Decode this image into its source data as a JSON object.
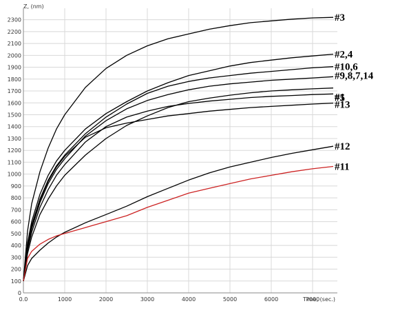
{
  "chart_data": {
    "type": "line",
    "title": "",
    "xlabel": "Time, (sec.)",
    "ylabel": "Z, (nm)",
    "xlim": [
      0,
      7600
    ],
    "ylim": [
      0,
      2350
    ],
    "grid": true,
    "x_ticks": [
      "0.0",
      "1000",
      "2000",
      "3000",
      "4000",
      "5000",
      "6000",
      "7000"
    ],
    "y_ticks": [
      "0",
      "100",
      "200",
      "300",
      "400",
      "500",
      "600",
      "700",
      "800",
      "900",
      "1000",
      "1100",
      "1200",
      "1300",
      "1400",
      "1500",
      "1600",
      "1700",
      "1800",
      "1900",
      "2000",
      "2100",
      "2200",
      "2300"
    ],
    "colors": {
      "default": "#000000",
      "highlight": "#cc2222",
      "grid": "#d8d8d8"
    },
    "series": [
      {
        "name": "#3",
        "color": "#000000",
        "x": [
          0,
          100,
          200,
          400,
          600,
          800,
          1000,
          1500,
          2000,
          2500,
          3000,
          3500,
          4000,
          4500,
          5000,
          5500,
          6000,
          6500,
          7000,
          7500
        ],
        "y": [
          100,
          520,
          750,
          1020,
          1220,
          1380,
          1500,
          1730,
          1890,
          2000,
          2080,
          2140,
          2180,
          2220,
          2250,
          2275,
          2290,
          2305,
          2315,
          2320
        ]
      },
      {
        "name": "#2,4",
        "color": "#000000",
        "x": [
          0,
          100,
          200,
          400,
          600,
          800,
          1000,
          1500,
          2000,
          2500,
          3000,
          3500,
          4000,
          4500,
          5000,
          5500,
          6000,
          6500,
          7000,
          7500
        ],
        "y": [
          100,
          420,
          600,
          830,
          990,
          1110,
          1200,
          1380,
          1510,
          1610,
          1700,
          1770,
          1830,
          1870,
          1910,
          1940,
          1960,
          1980,
          1995,
          2010
        ]
      },
      {
        "name": "#10,6",
        "color": "#000000",
        "x": [
          0,
          100,
          200,
          400,
          600,
          800,
          1000,
          1500,
          2000,
          2500,
          3000,
          3500,
          4000,
          4500,
          5000,
          5500,
          6000,
          6500,
          7000,
          7500
        ],
        "y": [
          100,
          400,
          570,
          790,
          950,
          1070,
          1160,
          1340,
          1480,
          1590,
          1680,
          1740,
          1780,
          1810,
          1830,
          1850,
          1865,
          1880,
          1895,
          1905
        ]
      },
      {
        "name": "#9,8,7,14",
        "color": "#000000",
        "x": [
          0,
          100,
          200,
          400,
          600,
          800,
          1000,
          1500,
          2000,
          2500,
          3000,
          3500,
          4000,
          4500,
          5000,
          5500,
          6000,
          6500,
          7000,
          7500
        ],
        "y": [
          100,
          380,
          540,
          760,
          920,
          1040,
          1130,
          1320,
          1450,
          1550,
          1620,
          1670,
          1710,
          1740,
          1760,
          1775,
          1790,
          1800,
          1810,
          1820
        ]
      },
      {
        "name": "#5",
        "color": "#000000",
        "x": [
          0,
          100,
          200,
          400,
          600,
          800,
          1000,
          1500,
          2000,
          2500,
          3000,
          3500,
          4000,
          4500,
          5000,
          5500,
          6000,
          6500,
          7000,
          7500
        ],
        "y": [
          100,
          330,
          470,
          660,
          790,
          900,
          990,
          1160,
          1300,
          1410,
          1490,
          1560,
          1610,
          1640,
          1665,
          1685,
          1700,
          1710,
          1718,
          1725
        ]
      },
      {
        "name": "#1",
        "color": "#000000",
        "x": [
          0,
          100,
          200,
          400,
          600,
          800,
          1000,
          1500,
          2000,
          2500,
          3000,
          3500,
          4000,
          4500,
          5000,
          5500,
          6000,
          6500,
          7000,
          7500
        ],
        "y": [
          100,
          360,
          510,
          720,
          870,
          990,
          1080,
          1270,
          1400,
          1480,
          1530,
          1570,
          1595,
          1615,
          1630,
          1645,
          1655,
          1662,
          1670,
          1675
        ]
      },
      {
        "name": "#13",
        "color": "#000000",
        "x": [
          0,
          100,
          200,
          400,
          600,
          800,
          1000,
          1500,
          2000,
          2500,
          3000,
          3500,
          4000,
          4500,
          5000,
          5500,
          6000,
          6500,
          7000,
          7500
        ],
        "y": [
          100,
          400,
          560,
          780,
          940,
          1060,
          1150,
          1310,
          1390,
          1430,
          1460,
          1490,
          1510,
          1530,
          1545,
          1560,
          1570,
          1580,
          1590,
          1598
        ]
      },
      {
        "name": "#12",
        "color": "#000000",
        "x": [
          0,
          100,
          200,
          400,
          600,
          800,
          1000,
          1500,
          2000,
          2500,
          3000,
          3500,
          4000,
          4500,
          5000,
          5500,
          6000,
          6500,
          7000,
          7500
        ],
        "y": [
          100,
          230,
          290,
          360,
          420,
          470,
          510,
          590,
          660,
          730,
          810,
          880,
          950,
          1010,
          1060,
          1100,
          1140,
          1175,
          1205,
          1235
        ]
      },
      {
        "name": "#11",
        "color": "#cc2222",
        "x": [
          0,
          100,
          200,
          400,
          600,
          800,
          1000,
          1500,
          2000,
          2500,
          3000,
          3500,
          4000,
          4500,
          5000,
          5500,
          6000,
          6500,
          7000,
          7500
        ],
        "y": [
          100,
          290,
          350,
          410,
          450,
          480,
          500,
          550,
          600,
          650,
          720,
          780,
          840,
          880,
          920,
          960,
          990,
          1020,
          1045,
          1065
        ]
      }
    ]
  }
}
